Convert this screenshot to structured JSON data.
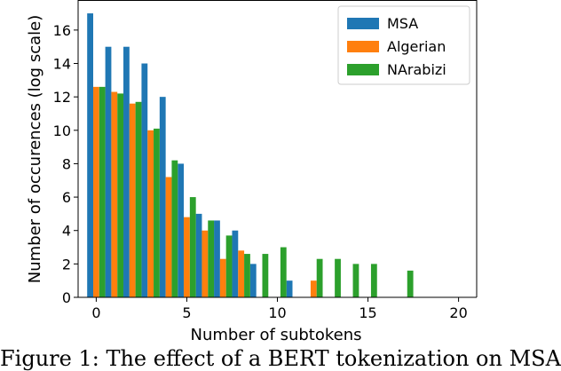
{
  "chart_data": {
    "type": "bar",
    "xlabel": "Number of subtokens",
    "ylabel": "Number of occurences (log scale)",
    "xlim": [
      -1,
      21
    ],
    "ylim": [
      0,
      17.8
    ],
    "xticks": [
      0,
      5,
      10,
      15,
      20
    ],
    "yticks": [
      0,
      2,
      4,
      6,
      8,
      10,
      12,
      14,
      16
    ],
    "legend_position": "upper right",
    "grid": false,
    "series": [
      {
        "name": "MSA",
        "color": "#1f77b4",
        "points": [
          {
            "x": 0,
            "y": 17.0
          },
          {
            "x": 1,
            "y": 15.0
          },
          {
            "x": 2,
            "y": 15.0
          },
          {
            "x": 3,
            "y": 14.0
          },
          {
            "x": 4,
            "y": 12.0
          },
          {
            "x": 5,
            "y": 8.0
          },
          {
            "x": 6,
            "y": 5.0
          },
          {
            "x": 7,
            "y": 4.6
          },
          {
            "x": 8,
            "y": 4.0
          },
          {
            "x": 9,
            "y": 2.0
          },
          {
            "x": 11,
            "y": 1.0
          }
        ]
      },
      {
        "name": "Algerian",
        "color": "#ff7f0e",
        "points": [
          {
            "x": 0,
            "y": 12.6
          },
          {
            "x": 1,
            "y": 12.3
          },
          {
            "x": 2,
            "y": 11.6
          },
          {
            "x": 3,
            "y": 10.0
          },
          {
            "x": 4,
            "y": 7.2
          },
          {
            "x": 5,
            "y": 4.8
          },
          {
            "x": 6,
            "y": 4.0
          },
          {
            "x": 7,
            "y": 2.3
          },
          {
            "x": 8,
            "y": 2.8
          },
          {
            "x": 12,
            "y": 1.0
          }
        ]
      },
      {
        "name": "NArabizi",
        "color": "#2ca02c",
        "points": [
          {
            "x": 0,
            "y": 12.6
          },
          {
            "x": 1,
            "y": 12.2
          },
          {
            "x": 2,
            "y": 11.7
          },
          {
            "x": 3,
            "y": 10.1
          },
          {
            "x": 4,
            "y": 8.2
          },
          {
            "x": 5,
            "y": 6.0
          },
          {
            "x": 6,
            "y": 4.6
          },
          {
            "x": 7,
            "y": 3.7
          },
          {
            "x": 8,
            "y": 2.6
          },
          {
            "x": 9,
            "y": 2.6
          },
          {
            "x": 10,
            "y": 3.0
          },
          {
            "x": 12,
            "y": 2.3
          },
          {
            "x": 13,
            "y": 2.3
          },
          {
            "x": 14,
            "y": 2.0
          },
          {
            "x": 15,
            "y": 2.0
          },
          {
            "x": 17,
            "y": 1.6
          }
        ]
      }
    ]
  },
  "caption": "Figure 1: The effect of a BERT tokenization on MSA"
}
